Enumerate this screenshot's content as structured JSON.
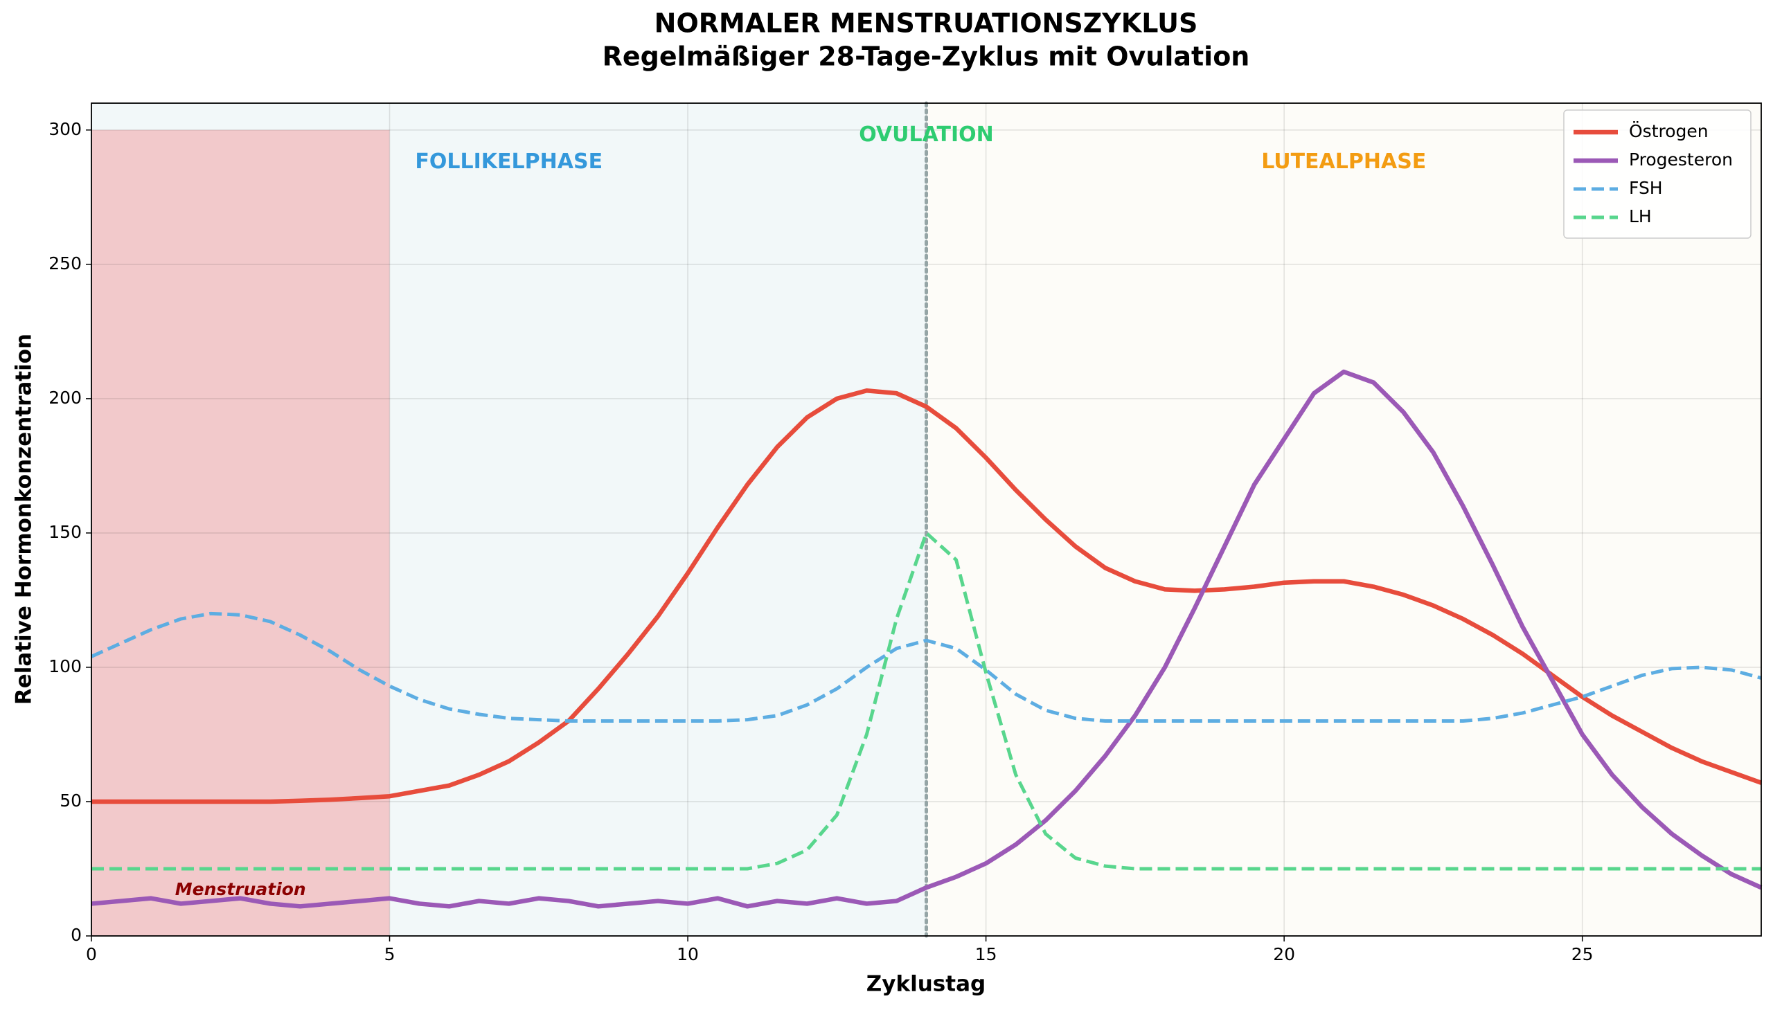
{
  "chart_data": {
    "type": "line",
    "title": "NORMALER MENSTRUATIONSZYKLUS",
    "subtitle": "Regelmäßiger 28-Tage-Zyklus mit Ovulation",
    "x_label": "Zyklustag",
    "y_label": "Relative Hormonkonzentration",
    "xlim": [
      0,
      28
    ],
    "ylim": [
      0,
      310
    ],
    "xticks": [
      0,
      5,
      10,
      15,
      20,
      25
    ],
    "yticks": [
      0,
      50,
      100,
      150,
      200,
      250,
      300
    ],
    "grid": true,
    "legend": "upper right",
    "shading": [
      {
        "xlim": [
          0,
          14
        ],
        "color": "#f2f8f9"
      },
      {
        "xlim": [
          14,
          28
        ],
        "color": "#fdfcf8"
      },
      {
        "xlim": [
          0,
          5
        ],
        "ylim": [
          0,
          300
        ],
        "color": "#f2c9cb"
      }
    ],
    "vline": {
      "x": 14,
      "color": "#95a5a6"
    },
    "annotations": [
      {
        "text": "FOLLIKELPHASE",
        "x": 7,
        "y": 288,
        "color": "#3498db"
      },
      {
        "text": "OVULATION",
        "x": 14,
        "y": 298,
        "color": "#2ecc71"
      },
      {
        "text": "LUTEALPHASE",
        "x": 21,
        "y": 288,
        "color": "#f39c12"
      },
      {
        "text": "Menstruation",
        "x": 2.5,
        "y": 17,
        "color": "#8b0000"
      }
    ],
    "x": [
      0,
      0.5,
      1,
      1.5,
      2,
      2.5,
      3,
      3.5,
      4,
      4.5,
      5,
      5.5,
      6,
      6.5,
      7,
      7.5,
      8,
      8.5,
      9,
      9.5,
      10,
      10.5,
      11,
      11.5,
      12,
      12.5,
      13,
      13.5,
      14,
      14.5,
      15,
      15.5,
      16,
      16.5,
      17,
      17.5,
      18,
      18.5,
      19,
      19.5,
      20,
      20.5,
      21,
      21.5,
      22,
      22.5,
      23,
      23.5,
      24,
      24.5,
      25,
      25.5,
      26,
      26.5,
      27,
      27.5,
      28
    ],
    "series": [
      {
        "name": "Östrogen",
        "color": "#e74c3c",
        "dash": false,
        "values": [
          50,
          50,
          50,
          50,
          50,
          50,
          50,
          50.3,
          50.7,
          51.3,
          52,
          54,
          56,
          60,
          65,
          72,
          80,
          92,
          105,
          119,
          135,
          152,
          168,
          182,
          193,
          200,
          203,
          202,
          197,
          189,
          178,
          166,
          155,
          145,
          137,
          132,
          129,
          128.5,
          129,
          130,
          131.5,
          132,
          132,
          130,
          127,
          123,
          118,
          112,
          105,
          97,
          89,
          82,
          76,
          70,
          65,
          61,
          57
        ]
      },
      {
        "name": "Progesteron",
        "color": "#9b59b6",
        "dash": false,
        "values": [
          12,
          13,
          14,
          12,
          13,
          14,
          12,
          11,
          12,
          13,
          14,
          12,
          11,
          13,
          12,
          14,
          13,
          11,
          12,
          13,
          12,
          14,
          11,
          13,
          12,
          14,
          12,
          13,
          18,
          22,
          27,
          34,
          43,
          54,
          67,
          82,
          100,
          122,
          145,
          168,
          185,
          202,
          210,
          206,
          195,
          180,
          160,
          138,
          115,
          95,
          75,
          60,
          48,
          38,
          30,
          23,
          18
        ]
      },
      {
        "name": "FSH",
        "color": "#5dade2",
        "dash": true,
        "values": [
          104,
          109,
          114,
          118,
          120,
          119.5,
          117,
          112,
          106,
          99,
          93,
          88,
          84.5,
          82.5,
          81,
          80.5,
          80,
          80,
          80,
          80,
          80,
          80,
          80.5,
          82,
          86,
          92,
          100,
          107,
          110,
          107,
          99,
          90,
          84,
          81,
          80,
          80,
          80,
          80,
          80,
          80,
          80,
          80,
          80,
          80,
          80,
          80,
          80,
          81,
          83,
          86,
          89,
          93,
          97,
          99.5,
          100,
          99,
          96
        ]
      },
      {
        "name": "LH",
        "color": "#58d68d",
        "dash": true,
        "values": [
          25,
          25,
          25,
          25,
          25,
          25,
          25,
          25,
          25,
          25,
          25,
          25,
          25,
          25,
          25,
          25,
          25,
          25,
          25,
          25,
          25,
          25,
          25,
          27,
          32,
          45,
          75,
          118,
          150,
          140,
          98,
          60,
          38,
          29,
          26,
          25,
          25,
          25,
          25,
          25,
          25,
          25,
          25,
          25,
          25,
          25,
          25,
          25,
          25,
          25,
          25,
          25,
          25,
          25,
          25,
          25,
          25
        ]
      }
    ]
  }
}
